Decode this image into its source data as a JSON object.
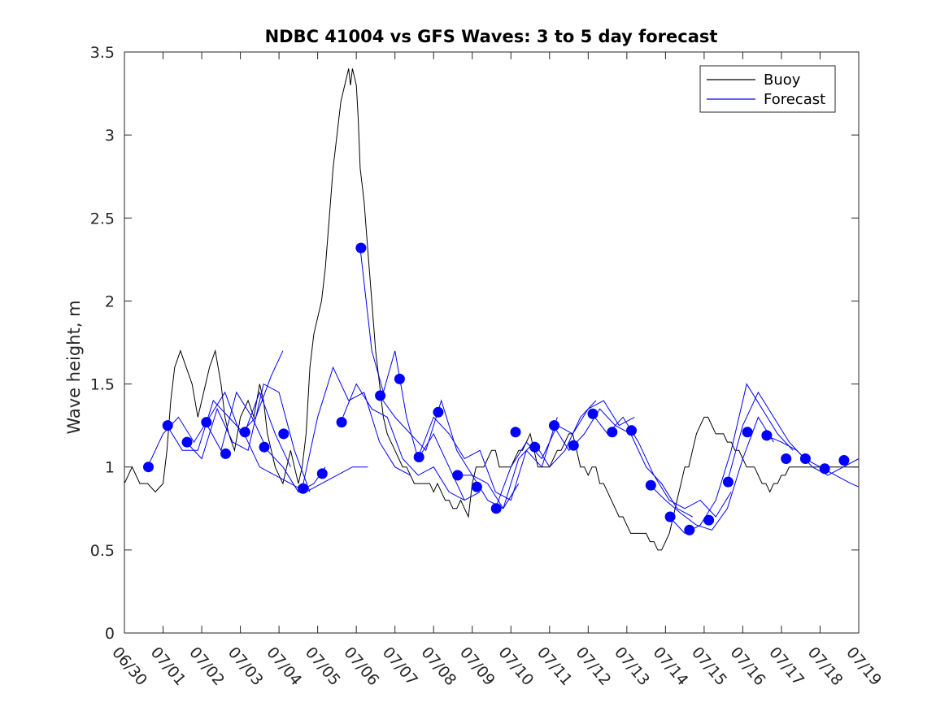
{
  "chart_data": {
    "type": "line",
    "title": "NDBC 41004 vs GFS Waves: 3 to 5 day forecast",
    "xlabel": "",
    "ylabel": "Wave height, m",
    "xlim": [
      "06/30",
      "07/19"
    ],
    "ylim": [
      0,
      3.5
    ],
    "x_tick_labels": [
      "06/30",
      "07/01",
      "07/02",
      "07/03",
      "07/04",
      "07/05",
      "07/06",
      "07/07",
      "07/08",
      "07/09",
      "07/10",
      "07/11",
      "07/12",
      "07/13",
      "07/14",
      "07/15",
      "07/16",
      "07/17",
      "07/18",
      "07/19"
    ],
    "y_tick_labels": [
      "0",
      "0.5",
      "1",
      "1.5",
      "2",
      "2.5",
      "3",
      "3.5"
    ],
    "grid": false,
    "legend_position": "top-right",
    "legend": [
      "Buoy",
      "Forecast"
    ],
    "colors": {
      "buoy": "#000000",
      "forecast": "#0000ff",
      "axis": "#262626"
    },
    "buoy": {
      "name": "Buoy",
      "x_days": [
        0,
        0.2,
        0.4,
        0.6,
        0.8,
        1.0,
        1.1,
        1.2,
        1.3,
        1.45,
        1.6,
        1.75,
        1.9,
        2.0,
        2.2,
        2.35,
        2.5,
        2.6,
        2.7,
        2.85,
        3.0,
        3.2,
        3.35,
        3.5,
        3.6,
        3.7,
        3.8,
        3.9,
        4.0,
        4.1,
        4.2,
        4.3,
        4.4,
        4.5,
        4.6,
        4.7,
        4.8,
        4.9,
        5.0,
        5.1,
        5.2,
        5.3,
        5.4,
        5.5,
        5.6,
        5.7,
        5.8,
        5.85,
        5.9,
        6.0,
        6.05,
        6.1,
        6.2,
        6.3,
        6.4,
        6.5,
        6.6,
        6.7,
        6.8,
        6.9,
        7.0,
        7.1,
        7.2,
        7.3,
        7.4,
        7.5,
        7.6,
        7.7,
        7.8,
        7.9,
        8.0,
        8.1,
        8.2,
        8.3,
        8.4,
        8.5,
        8.6,
        8.7,
        8.8,
        8.9,
        9.0,
        9.1,
        9.2,
        9.3,
        9.4,
        9.5,
        9.6,
        9.7,
        9.8,
        9.9,
        10.0,
        10.1,
        10.2,
        10.3,
        10.4,
        10.5,
        10.6,
        10.7,
        10.8,
        10.9,
        11.0,
        11.1,
        11.2,
        11.3,
        11.4,
        11.5,
        11.6,
        11.7,
        11.8,
        11.9,
        12.0,
        12.1,
        12.2,
        12.3,
        12.4,
        12.5,
        12.6,
        12.7,
        12.8,
        12.9,
        13.0,
        13.1,
        13.2,
        13.3,
        13.4,
        13.5,
        13.6,
        13.7,
        13.8,
        13.9,
        14.0,
        14.1,
        14.2,
        14.3,
        14.4,
        14.5,
        14.6,
        14.7,
        14.8,
        14.9,
        15.0,
        15.1,
        15.2,
        15.3,
        15.4,
        15.5,
        15.6,
        15.7,
        15.8,
        15.9,
        16.0,
        16.1,
        16.2,
        16.3,
        16.4,
        16.5,
        16.6,
        16.7,
        16.8,
        16.9,
        17.0,
        17.1,
        17.2,
        17.3,
        17.4,
        17.5,
        17.6,
        17.7,
        17.8,
        17.9,
        18.0,
        18.1,
        18.2,
        18.3,
        18.4,
        18.5,
        18.6,
        18.7,
        18.8,
        18.9,
        19.0
      ],
      "values": [
        0.9,
        1.0,
        0.9,
        0.9,
        0.85,
        0.9,
        1.1,
        1.4,
        1.6,
        1.7,
        1.6,
        1.5,
        1.3,
        1.4,
        1.6,
        1.7,
        1.5,
        1.3,
        1.2,
        1.1,
        1.3,
        1.4,
        1.3,
        1.5,
        1.4,
        1.2,
        1.1,
        1.0,
        0.95,
        0.9,
        1.0,
        1.1,
        1.0,
        0.9,
        1.0,
        1.2,
        1.6,
        1.8,
        1.9,
        2.0,
        2.2,
        2.5,
        2.8,
        3.0,
        3.2,
        3.3,
        3.4,
        3.3,
        3.4,
        3.3,
        3.1,
        2.8,
        2.6,
        2.3,
        2.0,
        1.7,
        1.5,
        1.3,
        1.2,
        1.15,
        1.1,
        1.05,
        1.0,
        1.0,
        0.95,
        0.9,
        0.9,
        0.9,
        0.9,
        0.9,
        0.85,
        0.9,
        0.85,
        0.8,
        0.8,
        0.75,
        0.75,
        0.8,
        0.75,
        0.7,
        0.9,
        1.0,
        1.0,
        1.0,
        1.05,
        1.1,
        1.1,
        1.0,
        1.0,
        1.0,
        1.0,
        1.05,
        1.1,
        1.1,
        1.15,
        1.2,
        1.1,
        1.0,
        1.0,
        1.0,
        1.0,
        1.05,
        1.1,
        1.1,
        1.15,
        1.2,
        1.2,
        1.1,
        1.0,
        1.0,
        0.95,
        1.0,
        1.0,
        0.9,
        0.9,
        0.85,
        0.8,
        0.75,
        0.7,
        0.7,
        0.65,
        0.6,
        0.6,
        0.6,
        0.6,
        0.6,
        0.55,
        0.55,
        0.5,
        0.5,
        0.55,
        0.6,
        0.7,
        0.8,
        0.9,
        1.0,
        1.0,
        1.1,
        1.2,
        1.25,
        1.3,
        1.3,
        1.25,
        1.2,
        1.2,
        1.2,
        1.15,
        1.15,
        1.1,
        1.1,
        1.05,
        1.0,
        1.0,
        1.0,
        0.95,
        0.9,
        0.9,
        0.85,
        0.9,
        0.9,
        0.95,
        0.95,
        1.0,
        1.0,
        1.0,
        1.0,
        1.0,
        1.0,
        1.0,
        1.0,
        1.0,
        1.0,
        1.0,
        1.0,
        1.0,
        1.0,
        1.0,
        1.0,
        1.0,
        1.0,
        1.0
      ]
    },
    "forecast_points": {
      "name": "Forecast",
      "x_days": [
        0.62,
        1.12,
        1.62,
        2.12,
        2.62,
        3.12,
        3.62,
        4.12,
        4.62,
        5.12,
        5.62,
        6.12,
        6.62,
        7.12,
        7.62,
        8.12,
        8.62,
        9.12,
        9.62,
        10.12,
        10.62,
        11.12,
        11.62,
        12.12,
        12.62,
        13.12,
        13.62,
        14.12,
        14.62,
        15.12,
        15.62,
        16.12,
        16.62,
        17.12,
        17.62,
        18.12,
        18.62
      ],
      "values": [
        1.0,
        1.25,
        1.15,
        1.27,
        1.08,
        1.21,
        1.12,
        1.2,
        0.87,
        0.96,
        1.27,
        2.32,
        1.43,
        1.53,
        1.06,
        1.33,
        0.95,
        0.88,
        0.75,
        1.21,
        1.12,
        1.25,
        1.13,
        1.32,
        1.21,
        1.22,
        0.89,
        0.7,
        0.62,
        0.68,
        0.91,
        1.21,
        1.19,
        1.05,
        1.05,
        0.99,
        1.04
      ]
    },
    "forecast_runs": [
      {
        "x_days": [
          0.6,
          1.0,
          1.4,
          1.8,
          2.2,
          2.6,
          3.0,
          3.4,
          3.8,
          4.1
        ],
        "values": [
          1.0,
          1.2,
          1.3,
          1.15,
          1.3,
          1.45,
          1.2,
          1.3,
          1.55,
          1.7
        ]
      },
      {
        "x_days": [
          1.1,
          1.5,
          1.9,
          2.3,
          2.7,
          3.1,
          3.5,
          3.9,
          4.3
        ],
        "values": [
          1.25,
          1.1,
          1.1,
          1.4,
          1.3,
          1.2,
          1.45,
          1.2,
          1.0
        ]
      },
      {
        "x_days": [
          1.6,
          2.0,
          2.4,
          2.8,
          3.2,
          3.6,
          4.0,
          4.4,
          4.8
        ],
        "values": [
          1.15,
          1.05,
          1.35,
          1.15,
          1.1,
          1.5,
          1.45,
          1.1,
          0.85
        ]
      },
      {
        "x_days": [
          2.1,
          2.5,
          2.9,
          3.3,
          3.7,
          4.1,
          4.5,
          4.9,
          5.2
        ],
        "values": [
          1.27,
          1.1,
          1.45,
          1.3,
          1.1,
          1.0,
          0.85,
          0.9,
          1.0
        ]
      },
      {
        "x_days": [
          3.1,
          3.5,
          3.9,
          4.3,
          4.7,
          5.1,
          5.5,
          5.9,
          6.3
        ],
        "values": [
          1.2,
          1.0,
          0.95,
          0.9,
          0.85,
          0.9,
          0.95,
          1.0,
          1.0
        ]
      },
      {
        "x_days": [
          4.6,
          5.0,
          5.4,
          5.8,
          6.2,
          6.6,
          7.0,
          7.4
        ],
        "values": [
          0.87,
          1.3,
          1.6,
          1.4,
          1.45,
          1.15,
          1.0,
          0.95
        ]
      },
      {
        "x_days": [
          5.6,
          6.0,
          6.4,
          6.8,
          7.2,
          7.6,
          8.0,
          8.4,
          8.8,
          9.2
        ],
        "values": [
          1.27,
          1.5,
          1.35,
          1.3,
          1.05,
          0.95,
          1.0,
          0.85,
          0.8,
          0.85
        ]
      },
      {
        "x_days": [
          6.1,
          6.4,
          6.7,
          7.0,
          7.3,
          7.6,
          8.0,
          8.4,
          8.8
        ],
        "values": [
          2.32,
          1.7,
          1.45,
          1.7,
          1.3,
          1.05,
          1.2,
          1.0,
          0.8
        ]
      },
      {
        "x_days": [
          6.6,
          7.0,
          7.4,
          7.8,
          8.2,
          8.6,
          9.0,
          9.4,
          9.8,
          10.2
        ],
        "values": [
          1.43,
          1.3,
          1.2,
          1.1,
          1.4,
          1.1,
          0.95,
          0.9,
          0.75,
          0.9
        ]
      },
      {
        "x_days": [
          7.6,
          8.0,
          8.4,
          8.8,
          9.2,
          9.6,
          10.0,
          10.4,
          10.8,
          11.2
        ],
        "values": [
          1.06,
          1.3,
          1.2,
          1.05,
          1.1,
          0.85,
          0.8,
          1.1,
          1.0,
          1.3
        ]
      },
      {
        "x_days": [
          8.6,
          9.0,
          9.4,
          9.8,
          10.2,
          10.6,
          11.0,
          11.4,
          11.8,
          12.2
        ],
        "values": [
          0.95,
          0.95,
          0.8,
          0.75,
          1.05,
          1.15,
          1.0,
          1.1,
          1.3,
          1.4
        ]
      },
      {
        "x_days": [
          9.6,
          10.0,
          10.4,
          10.8,
          11.2,
          11.6,
          12.0,
          12.4,
          12.8,
          13.2
        ],
        "values": [
          0.75,
          1.0,
          1.15,
          1.05,
          1.25,
          1.2,
          1.35,
          1.4,
          1.25,
          1.3
        ]
      },
      {
        "x_days": [
          11.1,
          11.5,
          11.9,
          12.3,
          12.7,
          13.1,
          13.5,
          13.9,
          14.3,
          14.7
        ],
        "values": [
          1.25,
          1.1,
          1.2,
          1.35,
          1.25,
          1.2,
          1.0,
          0.9,
          0.75,
          0.7
        ]
      },
      {
        "x_days": [
          12.1,
          12.5,
          12.9,
          13.3,
          13.7,
          14.1,
          14.5,
          14.9,
          15.3,
          15.7
        ],
        "values": [
          1.32,
          1.2,
          1.3,
          1.15,
          0.95,
          0.8,
          0.75,
          0.8,
          0.7,
          0.85
        ]
      },
      {
        "x_days": [
          13.6,
          14.0,
          14.4,
          14.8,
          15.2,
          15.6,
          16.0,
          16.4,
          16.8
        ],
        "values": [
          0.89,
          0.8,
          0.72,
          0.65,
          0.62,
          0.75,
          1.05,
          1.3,
          1.15
        ]
      },
      {
        "x_days": [
          14.1,
          14.5,
          14.9,
          15.3,
          15.7,
          16.1,
          16.5,
          16.9,
          17.3
        ],
        "values": [
          0.7,
          0.6,
          0.65,
          0.8,
          1.1,
          1.5,
          1.35,
          1.2,
          1.1
        ]
      },
      {
        "x_days": [
          15.6,
          16.0,
          16.4,
          16.8,
          17.2,
          17.6,
          18.0,
          18.4,
          18.8,
          19.0
        ],
        "values": [
          0.91,
          1.25,
          1.45,
          1.3,
          1.15,
          1.05,
          1.0,
          0.95,
          0.9,
          0.88
        ]
      },
      {
        "x_days": [
          16.6,
          17.0,
          17.4,
          17.8,
          18.2,
          18.6,
          19.0
        ],
        "values": [
          1.19,
          1.15,
          1.1,
          1.0,
          0.95,
          1.0,
          1.05
        ]
      }
    ]
  }
}
